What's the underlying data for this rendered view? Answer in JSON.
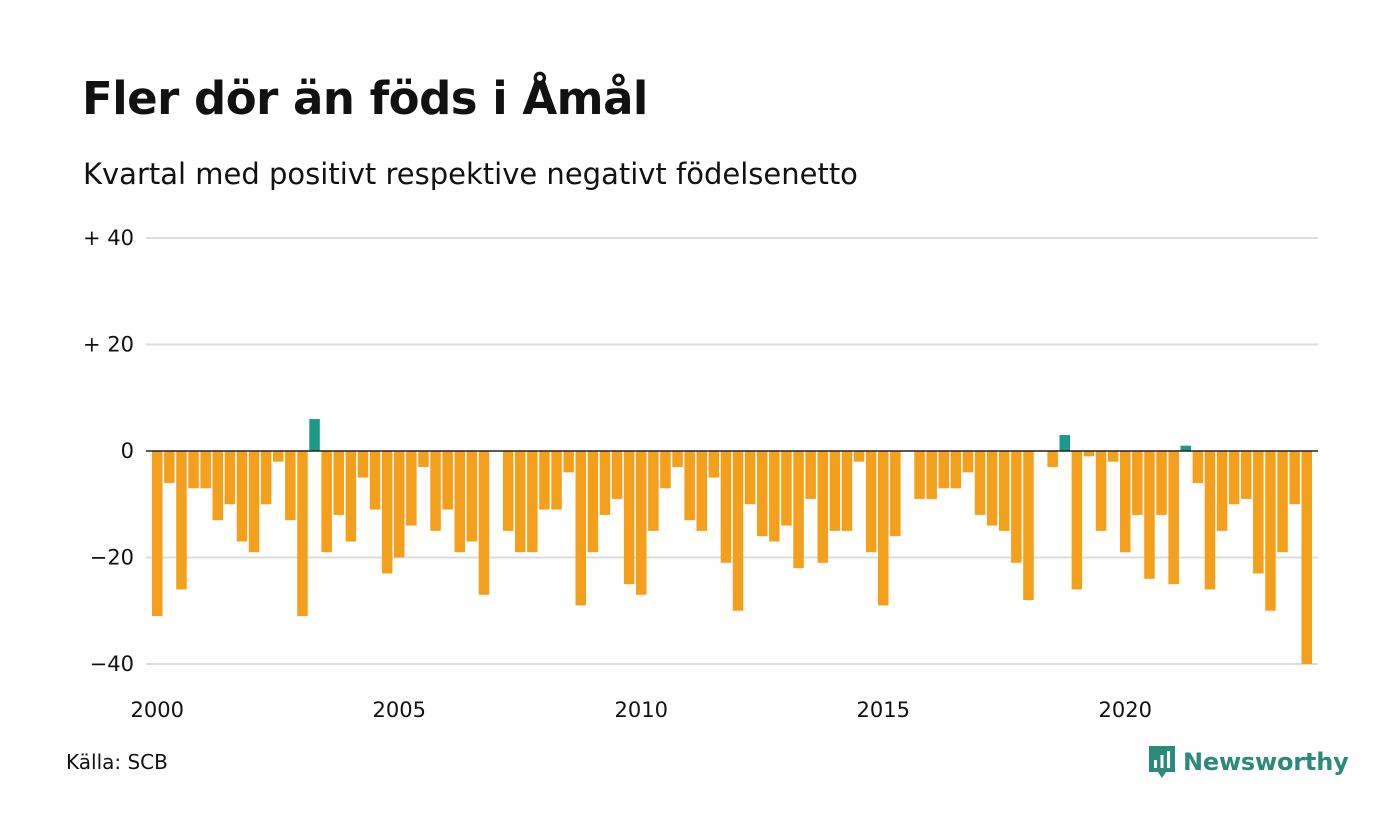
{
  "chart_data": {
    "type": "bar",
    "title": "Fler dör än föds i Åmål",
    "subtitle": "Kvartal med positivt respektive negativt födelsenetto",
    "xlabel": "",
    "ylabel": "",
    "ylim": [
      -40,
      40
    ],
    "yticks": [
      {
        "value": 40,
        "label": "+ 40"
      },
      {
        "value": 20,
        "label": "+ 20"
      },
      {
        "value": 0,
        "label": "0"
      },
      {
        "value": -20,
        "label": "−20"
      },
      {
        "value": -40,
        "label": "−40"
      }
    ],
    "xticks": [
      {
        "year": 2000,
        "label": "2000"
      },
      {
        "year": 2005,
        "label": "2005"
      },
      {
        "year": 2010,
        "label": "2010"
      },
      {
        "year": 2015,
        "label": "2015"
      },
      {
        "year": 2020,
        "label": "2020"
      }
    ],
    "grid": true,
    "colors": {
      "negative": "#f5a01c",
      "positive": "#1b9a8a",
      "grid": "#dddddd",
      "zero_line": "#222222"
    },
    "bars": [
      {
        "x": "2000 Q1",
        "value": -31
      },
      {
        "x": "2000 Q2",
        "value": -6
      },
      {
        "x": "2000 Q3",
        "value": -26
      },
      {
        "x": "2000 Q4",
        "value": -7
      },
      {
        "x": "2001 Q1",
        "value": -7
      },
      {
        "x": "2001 Q2",
        "value": -13
      },
      {
        "x": "2001 Q3",
        "value": -10
      },
      {
        "x": "2001 Q4",
        "value": -17
      },
      {
        "x": "2002 Q1",
        "value": -19
      },
      {
        "x": "2002 Q2",
        "value": -10
      },
      {
        "x": "2002 Q3",
        "value": -2
      },
      {
        "x": "2002 Q4",
        "value": -13
      },
      {
        "x": "2003 Q1",
        "value": -31
      },
      {
        "x": "2003 Q2",
        "value": 6
      },
      {
        "x": "2003 Q3",
        "value": -19
      },
      {
        "x": "2003 Q4",
        "value": -12
      },
      {
        "x": "2004 Q1",
        "value": -17
      },
      {
        "x": "2004 Q2",
        "value": -5
      },
      {
        "x": "2004 Q3",
        "value": -11
      },
      {
        "x": "2004 Q4",
        "value": -23
      },
      {
        "x": "2005 Q1",
        "value": -20
      },
      {
        "x": "2005 Q2",
        "value": -14
      },
      {
        "x": "2005 Q3",
        "value": -3
      },
      {
        "x": "2005 Q4",
        "value": -15
      },
      {
        "x": "2006 Q1",
        "value": -11
      },
      {
        "x": "2006 Q2",
        "value": -19
      },
      {
        "x": "2006 Q3",
        "value": -17
      },
      {
        "x": "2006 Q4",
        "value": -27
      },
      {
        "x": "2007 Q1",
        "value": 0
      },
      {
        "x": "2007 Q2",
        "value": -15
      },
      {
        "x": "2007 Q3",
        "value": -19
      },
      {
        "x": "2007 Q4",
        "value": -19
      },
      {
        "x": "2008 Q1",
        "value": -11
      },
      {
        "x": "2008 Q2",
        "value": -11
      },
      {
        "x": "2008 Q3",
        "value": -4
      },
      {
        "x": "2008 Q4",
        "value": -29
      },
      {
        "x": "2009 Q1",
        "value": -19
      },
      {
        "x": "2009 Q2",
        "value": -12
      },
      {
        "x": "2009 Q3",
        "value": -9
      },
      {
        "x": "2009 Q4",
        "value": -25
      },
      {
        "x": "2010 Q1",
        "value": -27
      },
      {
        "x": "2010 Q2",
        "value": -15
      },
      {
        "x": "2010 Q3",
        "value": -7
      },
      {
        "x": "2010 Q4",
        "value": -3
      },
      {
        "x": "2011 Q1",
        "value": -13
      },
      {
        "x": "2011 Q2",
        "value": -15
      },
      {
        "x": "2011 Q3",
        "value": -5
      },
      {
        "x": "2011 Q4",
        "value": -21
      },
      {
        "x": "2012 Q1",
        "value": -30
      },
      {
        "x": "2012 Q2",
        "value": -10
      },
      {
        "x": "2012 Q3",
        "value": -16
      },
      {
        "x": "2012 Q4",
        "value": -17
      },
      {
        "x": "2013 Q1",
        "value": -14
      },
      {
        "x": "2013 Q2",
        "value": -22
      },
      {
        "x": "2013 Q3",
        "value": -9
      },
      {
        "x": "2013 Q4",
        "value": -21
      },
      {
        "x": "2014 Q1",
        "value": -15
      },
      {
        "x": "2014 Q2",
        "value": -15
      },
      {
        "x": "2014 Q3",
        "value": -2
      },
      {
        "x": "2014 Q4",
        "value": -19
      },
      {
        "x": "2015 Q1",
        "value": -29
      },
      {
        "x": "2015 Q2",
        "value": -16
      },
      {
        "x": "2015 Q3",
        "value": 0
      },
      {
        "x": "2015 Q4",
        "value": -9
      },
      {
        "x": "2016 Q1",
        "value": -9
      },
      {
        "x": "2016 Q2",
        "value": -7
      },
      {
        "x": "2016 Q3",
        "value": -7
      },
      {
        "x": "2016 Q4",
        "value": -4
      },
      {
        "x": "2017 Q1",
        "value": -12
      },
      {
        "x": "2017 Q2",
        "value": -14
      },
      {
        "x": "2017 Q3",
        "value": -15
      },
      {
        "x": "2017 Q4",
        "value": -21
      },
      {
        "x": "2018 Q1",
        "value": -28
      },
      {
        "x": "2018 Q2",
        "value": 0
      },
      {
        "x": "2018 Q3",
        "value": -3
      },
      {
        "x": "2018 Q4",
        "value": 3
      },
      {
        "x": "2019 Q1",
        "value": -26
      },
      {
        "x": "2019 Q2",
        "value": -1
      },
      {
        "x": "2019 Q3",
        "value": -15
      },
      {
        "x": "2019 Q4",
        "value": -2
      },
      {
        "x": "2020 Q1",
        "value": -19
      },
      {
        "x": "2020 Q2",
        "value": -12
      },
      {
        "x": "2020 Q3",
        "value": -24
      },
      {
        "x": "2020 Q4",
        "value": -12
      },
      {
        "x": "2021 Q1",
        "value": -25
      },
      {
        "x": "2021 Q2",
        "value": 1
      },
      {
        "x": "2021 Q3",
        "value": -6
      },
      {
        "x": "2021 Q4",
        "value": -26
      },
      {
        "x": "2022 Q1",
        "value": -15
      },
      {
        "x": "2022 Q2",
        "value": -10
      },
      {
        "x": "2022 Q3",
        "value": -9
      },
      {
        "x": "2022 Q4",
        "value": -23
      },
      {
        "x": "2023 Q1",
        "value": -30
      },
      {
        "x": "2023 Q2",
        "value": -19
      },
      {
        "x": "2023 Q3",
        "value": -10
      },
      {
        "x": "2023 Q4",
        "value": -40
      }
    ]
  },
  "footer": {
    "source": "Källa: SCB",
    "brand": "Newsworthy"
  },
  "icons": {
    "logo": "newsworthy-logo-icon"
  }
}
